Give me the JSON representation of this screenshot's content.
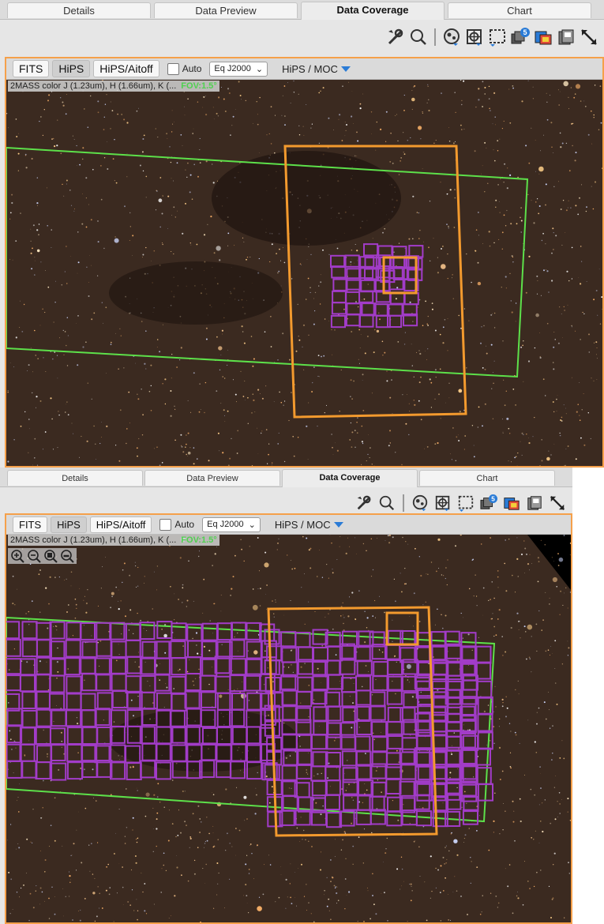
{
  "panels": [
    {
      "tabs": [
        {
          "label": "Details",
          "active": false
        },
        {
          "label": "Data Preview",
          "active": false
        },
        {
          "label": "Data Coverage",
          "active": true
        },
        {
          "label": "Chart",
          "active": false
        }
      ],
      "toolbar": {
        "icons": [
          "tools-icon",
          "zoom-icon",
          "hips-select-icon",
          "target-icon",
          "selection-icon",
          "layers-icon",
          "color-icon",
          "save-icon",
          "expand-icon"
        ],
        "layer_count": "5"
      },
      "options": {
        "buttons": [
          {
            "label": "FITS",
            "selected": false
          },
          {
            "label": "HiPS",
            "selected": true
          },
          {
            "label": "HiPS/Aitoff",
            "selected": false
          }
        ],
        "auto_label": "Auto",
        "coord_system": "Eq J2000",
        "menu_label": "HiPS / MOC"
      },
      "info": {
        "survey": "2MASS color J (1.23um), H (1.66um), K (...",
        "fov": "FOV:1.5°"
      }
    },
    {
      "tabs": [
        {
          "label": "Details",
          "active": false
        },
        {
          "label": "Data Preview",
          "active": false
        },
        {
          "label": "Data Coverage",
          "active": true
        },
        {
          "label": "Chart",
          "active": false
        }
      ],
      "toolbar": {
        "icons": [
          "tools-icon",
          "zoom-icon",
          "hips-select-icon",
          "target-icon",
          "selection-icon",
          "layers-icon",
          "color-icon",
          "save-icon",
          "expand-icon"
        ],
        "layer_count": "5"
      },
      "options": {
        "buttons": [
          {
            "label": "FITS",
            "selected": false
          },
          {
            "label": "HiPS",
            "selected": true
          },
          {
            "label": "HiPS/Aitoff",
            "selected": false
          }
        ],
        "auto_label": "Auto",
        "coord_system": "Eq J2000",
        "menu_label": "HiPS / MOC"
      },
      "info": {
        "survey": "2MASS color J (1.23um), H (1.66um), K (...",
        "fov": "FOV:1.5°"
      },
      "zoom_icons": [
        "zoom-in-icon",
        "zoom-out-icon",
        "zoom-fit-icon",
        "zoom-fill-icon"
      ]
    }
  ],
  "colors": {
    "accent_border": "#f5a04a",
    "footprint_green": "#5de04a",
    "footprint_orange": "#f39a2e",
    "moc_purple": "#a23cc8",
    "fov_green": "#4fd14f"
  }
}
